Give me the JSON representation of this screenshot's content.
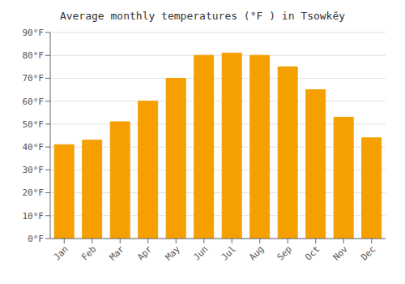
{
  "chart_data": {
    "type": "bar",
    "title": "Average monthly temperatures (°F ) in Tsowkĕy",
    "categories": [
      "Jan",
      "Feb",
      "Mar",
      "Apr",
      "May",
      "Jun",
      "Jul",
      "Aug",
      "Sep",
      "Oct",
      "Nov",
      "Dec"
    ],
    "values": [
      41,
      43,
      51,
      60,
      70,
      80,
      81,
      80,
      75,
      65,
      53,
      44
    ],
    "color": "#F5A000",
    "ylim": [
      0,
      90
    ],
    "yticks": [
      {
        "value": 0,
        "label": "0°F"
      },
      {
        "value": 10,
        "label": "10°F"
      },
      {
        "value": 20,
        "label": "20°F"
      },
      {
        "value": 30,
        "label": "30°F"
      },
      {
        "value": 40,
        "label": "40°F"
      },
      {
        "value": 50,
        "label": "50°F"
      },
      {
        "value": 60,
        "label": "60°F"
      },
      {
        "value": 70,
        "label": "70°F"
      },
      {
        "value": 80,
        "label": "80°F"
      },
      {
        "value": 90,
        "label": "90°F"
      }
    ],
    "grid": true
  }
}
